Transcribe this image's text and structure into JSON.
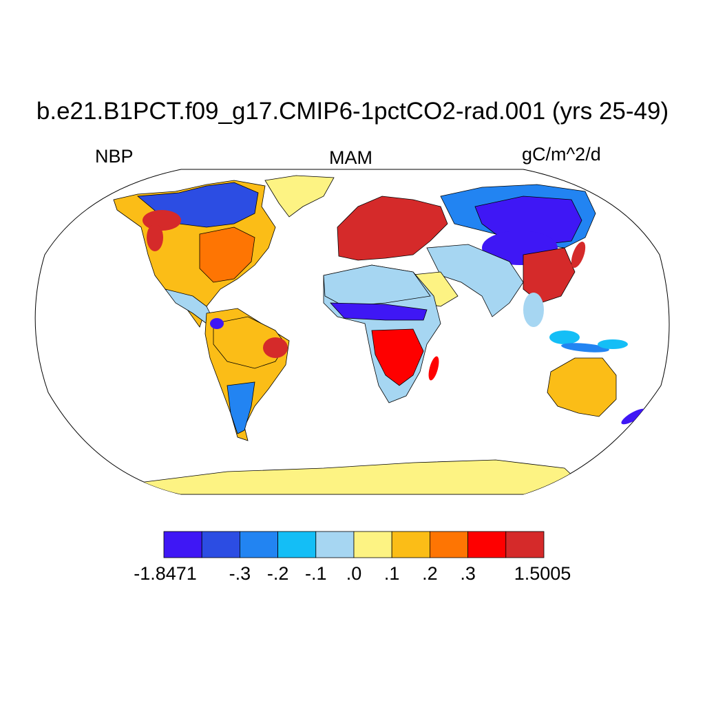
{
  "figure": {
    "title": "b.e21.B1PCT.f09_g17.CMIP6-1pctCO2-rad.001 (yrs 25-49)",
    "left_label": "NBP",
    "center_label": "MAM",
    "right_label": "gC/m^2/d",
    "projection": "Robinson",
    "ocean_color": "#ffffff"
  },
  "colorbar": {
    "colors": [
      "#3f17f5",
      "#2c4de3",
      "#2284f2",
      "#14bef6",
      "#a6d6f2",
      "#fdf383",
      "#fbbd17",
      "#fe7503",
      "#fe0000",
      "#d52a2a"
    ],
    "labels": [
      "-1.8471",
      "-.3",
      "-.2",
      "-.1",
      ".0",
      ".1",
      ".2",
      ".3",
      "1.5005"
    ]
  },
  "regions": [
    {
      "name": "Antarctica",
      "class": 5
    },
    {
      "name": "Greenland",
      "class": 5
    },
    {
      "name": "Europe",
      "class": 9
    },
    {
      "name": "Siberia",
      "class": 0
    },
    {
      "name": "Sahara",
      "class": 4
    },
    {
      "name": "Sahel",
      "class": 0
    },
    {
      "name": "Southern Africa",
      "class": 8
    },
    {
      "name": "Eastern North America",
      "class": 7
    },
    {
      "name": "Canada",
      "class": 1
    },
    {
      "name": "Amazon",
      "class": 6
    },
    {
      "name": "Southern South America",
      "class": 2
    },
    {
      "name": "Australia",
      "class": 6
    },
    {
      "name": "South Asia",
      "class": 4
    },
    {
      "name": "East China",
      "class": 9
    },
    {
      "name": "New Zealand",
      "class": 0
    }
  ]
}
